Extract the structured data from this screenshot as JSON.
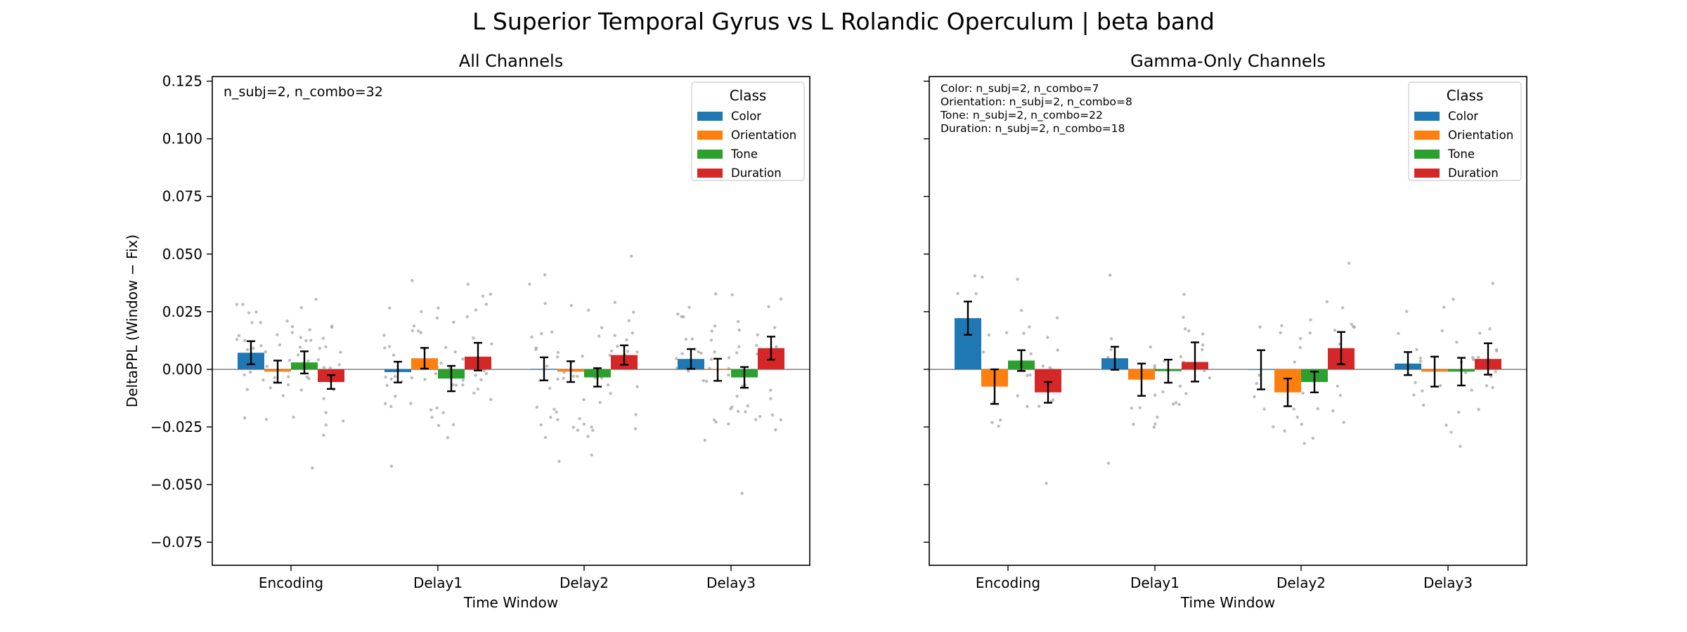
{
  "figure": {
    "title": "L Superior Temporal Gyrus vs L Rolandic Operculum  |  beta band"
  },
  "colors": {
    "Color": "#1f77b4",
    "Orientation": "#ff7f0e",
    "Tone": "#2ca02c",
    "Duration": "#d62728",
    "jitter_points": "#a0a0a0",
    "zero_line": "#808080"
  },
  "chart_data": [
    {
      "type": "bar",
      "title": "All Channels",
      "xlabel": "Time Window",
      "ylabel": "DeltaPPL (Window − Fix)",
      "ylim": [
        -0.085,
        0.127
      ],
      "yticks": [
        -0.075,
        -0.05,
        -0.025,
        0.0,
        0.025,
        0.05,
        0.075,
        0.1,
        0.125
      ],
      "ytick_labels": [
        "−0.075",
        "−0.050",
        "−0.025",
        "0.000",
        "0.025",
        "0.050",
        "0.075",
        "0.100",
        "0.125"
      ],
      "categories": [
        "Encoding",
        "Delay1",
        "Delay2",
        "Delay3"
      ],
      "legend_title": "Class",
      "legend_position": "top-right",
      "annotations": [
        "n_subj=2, n_combo=32"
      ],
      "series": [
        {
          "name": "Color",
          "values": [
            0.0072,
            -0.0012,
            0.0002,
            0.0045
          ],
          "errors": [
            0.005,
            0.0045,
            0.005,
            0.0043
          ]
        },
        {
          "name": "Orientation",
          "values": [
            -0.001,
            0.0048,
            -0.001,
            -0.0002
          ],
          "errors": [
            0.0048,
            0.0045,
            0.0045,
            0.0048
          ]
        },
        {
          "name": "Tone",
          "values": [
            0.003,
            -0.004,
            -0.0035,
            -0.0035
          ],
          "errors": [
            0.0048,
            0.0055,
            0.004,
            0.0045
          ]
        },
        {
          "name": "Duration",
          "values": [
            -0.0055,
            0.0055,
            0.0062,
            0.0092
          ],
          "errors": [
            0.003,
            0.006,
            0.0042,
            0.005
          ]
        }
      ]
    },
    {
      "type": "bar",
      "title": "Gamma-Only Channels",
      "xlabel": "Time Window",
      "ylabel": "",
      "ylim": [
        -0.085,
        0.127
      ],
      "yticks": [
        -0.075,
        -0.05,
        -0.025,
        0.0,
        0.025,
        0.05,
        0.075,
        0.1,
        0.125
      ],
      "ytick_labels": [],
      "categories": [
        "Encoding",
        "Delay1",
        "Delay2",
        "Delay3"
      ],
      "legend_title": "Class",
      "legend_position": "top-right",
      "annotations": [
        "Color: n_subj=2, n_combo=7",
        "Orientation: n_subj=2, n_combo=8",
        "Tone: n_subj=2, n_combo=22",
        "Duration: n_subj=2, n_combo=18"
      ],
      "series": [
        {
          "name": "Color",
          "values": [
            0.0222,
            0.0048,
            -0.0002,
            0.0025
          ],
          "errors": [
            0.0072,
            0.005,
            0.0085,
            0.005
          ]
        },
        {
          "name": "Orientation",
          "values": [
            -0.0075,
            -0.0045,
            -0.01,
            -0.001
          ],
          "errors": [
            0.0075,
            0.007,
            0.006,
            0.0065
          ]
        },
        {
          "name": "Tone",
          "values": [
            0.0038,
            -0.0008,
            -0.0055,
            -0.001
          ],
          "errors": [
            0.0045,
            0.005,
            0.0045,
            0.006
          ]
        },
        {
          "name": "Duration",
          "values": [
            -0.01,
            0.0032,
            0.0092,
            0.0045
          ],
          "errors": [
            0.0045,
            0.0085,
            0.007,
            0.0068
          ]
        }
      ]
    }
  ]
}
